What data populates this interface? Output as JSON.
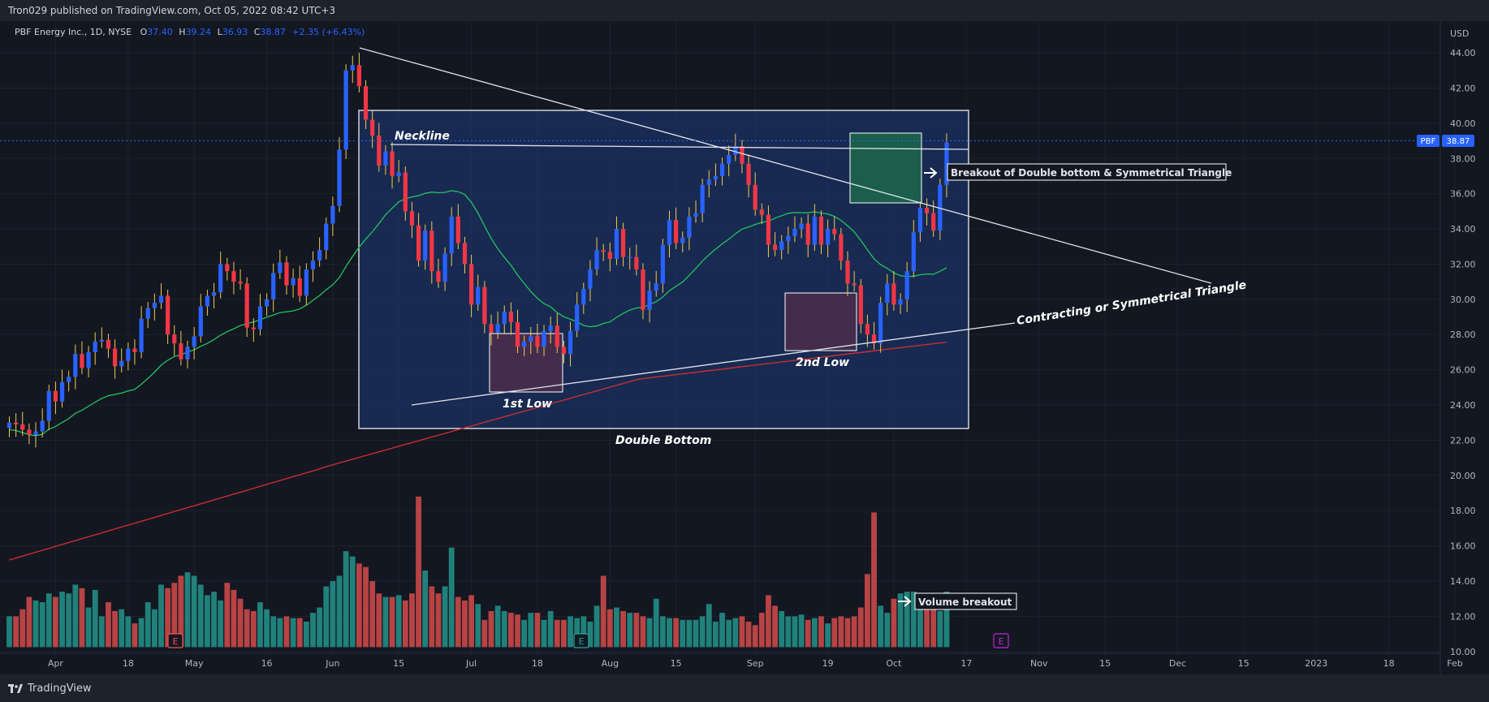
{
  "header": {
    "published": "Tron029 published on TradingView.com, Oct 05, 2022 08:42 UTC+3"
  },
  "legend": {
    "symbol": "PBF Energy Inc., 1D, NYSE",
    "o_label": "O",
    "o_value": "37.40",
    "h_label": "H",
    "h_value": "39.24",
    "l_label": "L",
    "l_value": "36.93",
    "c_label": "C",
    "c_value": "38.87",
    "change": "+2.35 (+6.43%)"
  },
  "price_tag": {
    "ticker": "PBF",
    "price": "38.87"
  },
  "footer": {
    "brand": "TradingView"
  },
  "annotations": {
    "neckline": "Neckline",
    "breakout": "Breakout of Double bottom & Symmetrical Triangle",
    "triangle": "Contracting or Symmetrical Triangle",
    "first_low": "1st Low",
    "second_low": "2nd Low",
    "double_bottom": "Double Bottom",
    "volume_breakout": "Volume breakout"
  },
  "earnings_markers": [
    "E",
    "E",
    "E"
  ],
  "colors": {
    "background": "#131722",
    "up": "#2962ff",
    "down": "#f23645",
    "vol_up": "#26a69a",
    "vol_down": "#ef5350",
    "ma_green": "#22c55e",
    "ma_red": "#d32f2f",
    "box_fill": "#1e3a78"
  },
  "chart_data": {
    "type": "candlestick",
    "symbol": "PBF",
    "interval": "1D",
    "y_axis": {
      "unit": "USD",
      "ticks": [
        "44.00",
        "42.00",
        "40.00",
        "38.00",
        "36.00",
        "34.00",
        "32.00",
        "30.00",
        "28.00",
        "26.00",
        "24.00",
        "22.00",
        "20.00",
        "18.00",
        "16.00",
        "14.00",
        "12.00",
        "10.00"
      ],
      "ylim": [
        9.9,
        45.8
      ]
    },
    "x_axis": {
      "ticks": [
        {
          "label": "Apr",
          "day": 7
        },
        {
          "label": "18",
          "day": 18
        },
        {
          "label": "May",
          "day": 28
        },
        {
          "label": "16",
          "day": 39
        },
        {
          "label": "Jun",
          "day": 49
        },
        {
          "label": "15",
          "day": 59
        },
        {
          "label": "Jul",
          "day": 70
        },
        {
          "label": "18",
          "day": 80
        },
        {
          "label": "Aug",
          "day": 91
        },
        {
          "label": "15",
          "day": 101
        },
        {
          "label": "Sep",
          "day": 113
        },
        {
          "label": "19",
          "day": 124
        },
        {
          "label": "Oct",
          "day": 134
        },
        {
          "label": "17",
          "day": 145
        },
        {
          "label": "Nov",
          "day": 156
        },
        {
          "label": "15",
          "day": 166
        },
        {
          "label": "Dec",
          "day": 177
        },
        {
          "label": "15",
          "day": 187
        },
        {
          "label": "2023",
          "day": 198
        },
        {
          "label": "18",
          "day": 209
        },
        {
          "label": "Feb",
          "day": 219
        }
      ]
    },
    "close": [
      23.0,
      22.9,
      22.6,
      22.3,
      22.5,
      23.1,
      24.8,
      24.2,
      25.3,
      25.6,
      26.9,
      26.1,
      27.0,
      27.6,
      27.7,
      27.2,
      26.2,
      26.5,
      27.2,
      27.0,
      28.9,
      29.5,
      29.8,
      30.2,
      28.0,
      27.5,
      26.6,
      27.3,
      27.9,
      29.6,
      30.2,
      30.4,
      32.0,
      31.6,
      31.0,
      30.9,
      28.4,
      28.3,
      29.6,
      30.0,
      31.5,
      32.1,
      30.8,
      31.2,
      30.2,
      31.7,
      32.2,
      32.8,
      34.3,
      35.3,
      38.5,
      43.0,
      43.3,
      42.1,
      40.2,
      39.3,
      37.6,
      38.4,
      37.0,
      37.2,
      35.0,
      34.2,
      32.2,
      33.9,
      31.6,
      31.0,
      32.6,
      34.7,
      33.2,
      32.0,
      29.7,
      30.7,
      28.6,
      28.1,
      28.6,
      29.3,
      28.7,
      27.3,
      27.6,
      27.9,
      27.3,
      28.2,
      28.5,
      27.3,
      26.9,
      28.2,
      29.7,
      30.6,
      31.7,
      32.8,
      32.7,
      32.3,
      34.0,
      32.4,
      32.4,
      31.7,
      29.4,
      30.5,
      30.9,
      33.1,
      34.5,
      33.2,
      33.5,
      34.7,
      34.9,
      36.5,
      36.8,
      37.0,
      37.7,
      38.2,
      38.7,
      37.7,
      36.5,
      35.1,
      34.8,
      33.1,
      32.8,
      33.3,
      33.6,
      34.0,
      34.3,
      33.1,
      34.7,
      33.1,
      34.0,
      33.7,
      32.2,
      30.9,
      30.8,
      28.6,
      28.0,
      27.5,
      29.8,
      30.9,
      29.7,
      30.0,
      31.6,
      33.8,
      35.2,
      34.9,
      33.9,
      36.5,
      38.9
    ],
    "volume": [
      12.0,
      12.0,
      12.4,
      13.1,
      12.9,
      12.8,
      13.3,
      13.1,
      13.4,
      13.3,
      13.8,
      13.6,
      12.5,
      13.5,
      12.0,
      12.8,
      12.3,
      12.4,
      12.0,
      11.6,
      11.9,
      12.8,
      12.4,
      13.8,
      13.6,
      13.9,
      14.3,
      14.5,
      14.3,
      13.8,
      13.2,
      13.4,
      12.9,
      13.9,
      13.5,
      13.0,
      12.4,
      12.3,
      12.8,
      12.4,
      12.0,
      11.9,
      12.0,
      11.9,
      11.9,
      11.7,
      12.2,
      12.5,
      13.7,
      14.0,
      14.3,
      15.7,
      15.4,
      15.0,
      14.8,
      14.0,
      13.3,
      13.1,
      13.1,
      13.2,
      12.9,
      13.3,
      18.8,
      14.6,
      13.7,
      13.3,
      13.7,
      15.9,
      13.1,
      12.9,
      13.2,
      12.7,
      11.8,
      12.3,
      12.6,
      12.3,
      12.2,
      12.1,
      11.8,
      12.2,
      12.2,
      11.8,
      12.3,
      11.8,
      11.8,
      12.0,
      11.9,
      12.0,
      11.7,
      12.6,
      14.3,
      12.4,
      12.5,
      12.3,
      12.2,
      12.2,
      12.0,
      11.9,
      13.0,
      12.0,
      11.9,
      11.9,
      11.8,
      11.8,
      11.8,
      12.0,
      12.7,
      11.7,
      12.2,
      11.8,
      11.9,
      12.0,
      11.7,
      11.5,
      12.2,
      13.2,
      12.6,
      12.3,
      12.0,
      12.0,
      12.1,
      11.8,
      11.9,
      12.0,
      11.6,
      11.9,
      12.0,
      11.9,
      12.0,
      12.5,
      14.4,
      17.9,
      12.6,
      12.2,
      13.0,
      13.3,
      13.4,
      13.4,
      13.3,
      13.3,
      12.9,
      12.3,
      13.4
    ]
  }
}
